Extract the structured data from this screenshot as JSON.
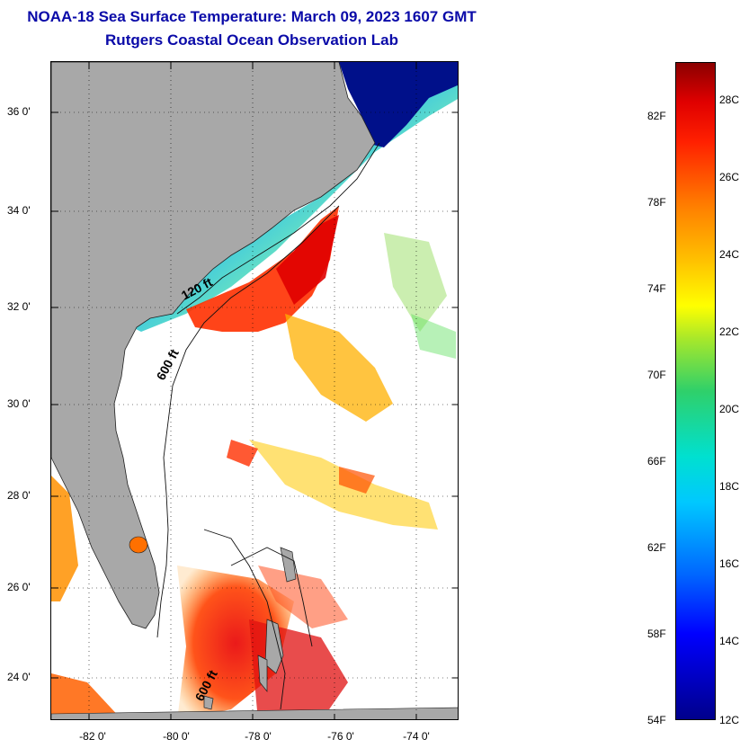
{
  "title": {
    "line1": "NOAA-18 Sea Surface Temperature:  March 09, 2023 1607 GMT",
    "line2": "Rutgers Coastal Ocean Observation Lab"
  },
  "map": {
    "lat_labels": [
      "36 0'",
      "34 0'",
      "32 0'",
      "30 0'",
      "28 0'",
      "26 0'",
      "24 0'"
    ],
    "lon_labels": [
      "-82 0'",
      "-80 0'",
      "-78 0'",
      "-76 0'",
      "-74 0'"
    ],
    "isobath_labels": [
      "120 ft",
      "600 ft",
      "600 ft"
    ]
  },
  "colorbar": {
    "fahrenheit_labels": [
      "82F",
      "78F",
      "74F",
      "70F",
      "66F",
      "62F",
      "58F",
      "54F"
    ],
    "celsius_labels": [
      "28C",
      "26C",
      "24C",
      "22C",
      "20C",
      "18C",
      "16C",
      "14C",
      "12C"
    ],
    "colors": {
      "land": "#a8a8a8",
      "cold": "#00008b",
      "warm": "#e00000"
    }
  }
}
